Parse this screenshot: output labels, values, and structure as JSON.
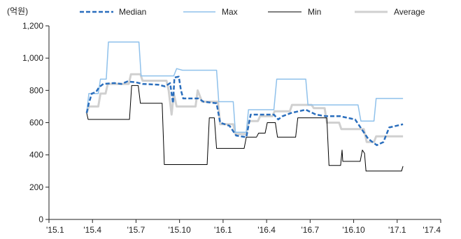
{
  "chart_data": {
    "type": "line",
    "unit_label": "(억원)",
    "y_ticks": [
      "0",
      "200",
      "400",
      "600",
      "800",
      "1,000",
      "1,200"
    ],
    "ylim": [
      0,
      1200
    ],
    "x_ticks": [
      "'15.1",
      "'15.4",
      "'15.7",
      "'15.10",
      "'16.1",
      "'16.4",
      "'16.7",
      "'16.10",
      "'17.1",
      "'17.4"
    ],
    "x_tick_months": [
      0,
      3,
      6,
      9,
      12,
      15,
      18,
      21,
      24,
      27
    ],
    "xlim_months": [
      0,
      27
    ],
    "grid": false,
    "legend_position": "top",
    "series": [
      {
        "name": "Median",
        "color": "#2a6ebd",
        "style": "dashed",
        "points": [
          [
            2.6,
            660
          ],
          [
            2.75,
            720
          ],
          [
            2.95,
            780
          ],
          [
            3.25,
            790
          ],
          [
            3.45,
            820
          ],
          [
            3.75,
            840
          ],
          [
            4.5,
            845
          ],
          [
            5.0,
            840
          ],
          [
            5.4,
            855
          ],
          [
            6.0,
            850
          ],
          [
            6.45,
            840
          ],
          [
            7.55,
            835
          ],
          [
            8.0,
            825
          ],
          [
            8.35,
            845
          ],
          [
            8.55,
            720
          ],
          [
            8.65,
            880
          ],
          [
            8.95,
            885
          ],
          [
            9.1,
            800
          ],
          [
            9.25,
            750
          ],
          [
            10.3,
            750
          ],
          [
            10.65,
            730
          ],
          [
            11.55,
            720
          ],
          [
            11.8,
            600
          ],
          [
            12.45,
            580
          ],
          [
            12.9,
            520
          ],
          [
            13.6,
            510
          ],
          [
            13.9,
            650
          ],
          [
            15.5,
            650
          ],
          [
            15.8,
            620
          ],
          [
            16.1,
            640
          ],
          [
            16.7,
            660
          ],
          [
            17.2,
            670
          ],
          [
            17.7,
            680
          ],
          [
            18.4,
            650
          ],
          [
            19.1,
            640
          ],
          [
            20.1,
            640
          ],
          [
            20.3,
            635
          ],
          [
            21.1,
            620
          ],
          [
            22.0,
            500
          ],
          [
            22.3,
            480
          ],
          [
            22.6,
            460
          ],
          [
            23.05,
            480
          ],
          [
            23.45,
            570
          ],
          [
            24.4,
            590
          ]
        ]
      },
      {
        "name": "Max",
        "color": "#8fc1eb",
        "style": "solid",
        "points": [
          [
            2.6,
            660
          ],
          [
            2.75,
            780
          ],
          [
            3.4,
            780
          ],
          [
            3.55,
            870
          ],
          [
            3.95,
            870
          ],
          [
            4.1,
            1100
          ],
          [
            6.2,
            1100
          ],
          [
            6.35,
            890
          ],
          [
            8.6,
            890
          ],
          [
            8.8,
            935
          ],
          [
            9.2,
            925
          ],
          [
            11.55,
            925
          ],
          [
            11.7,
            730
          ],
          [
            12.7,
            730
          ],
          [
            12.85,
            540
          ],
          [
            13.6,
            540
          ],
          [
            13.75,
            680
          ],
          [
            15.5,
            680
          ],
          [
            15.7,
            870
          ],
          [
            17.7,
            870
          ],
          [
            17.85,
            710
          ],
          [
            21.3,
            710
          ],
          [
            21.5,
            610
          ],
          [
            22.4,
            610
          ],
          [
            22.55,
            750
          ],
          [
            24.4,
            750
          ]
        ]
      },
      {
        "name": "Min",
        "color": "#000000",
        "style": "solid",
        "points": [
          [
            2.6,
            660
          ],
          [
            2.7,
            620
          ],
          [
            5.55,
            620
          ],
          [
            5.7,
            830
          ],
          [
            6.15,
            830
          ],
          [
            6.3,
            720
          ],
          [
            7.8,
            720
          ],
          [
            7.95,
            340
          ],
          [
            10.9,
            340
          ],
          [
            11.05,
            630
          ],
          [
            11.4,
            630
          ],
          [
            11.55,
            440
          ],
          [
            13.45,
            440
          ],
          [
            13.6,
            510
          ],
          [
            14.3,
            510
          ],
          [
            14.45,
            535
          ],
          [
            14.9,
            535
          ],
          [
            15.05,
            600
          ],
          [
            15.6,
            600
          ],
          [
            15.75,
            510
          ],
          [
            17.0,
            510
          ],
          [
            17.15,
            630
          ],
          [
            19.15,
            630
          ],
          [
            19.3,
            335
          ],
          [
            20.1,
            335
          ],
          [
            20.2,
            430
          ],
          [
            20.25,
            360
          ],
          [
            21.45,
            360
          ],
          [
            21.6,
            430
          ],
          [
            21.75,
            410
          ],
          [
            21.85,
            300
          ],
          [
            24.3,
            300
          ],
          [
            24.4,
            330
          ]
        ]
      },
      {
        "name": "Average",
        "color": "#d0d0d0",
        "style": "solid",
        "points": [
          [
            2.6,
            660
          ],
          [
            2.75,
            700
          ],
          [
            3.4,
            700
          ],
          [
            3.55,
            780
          ],
          [
            3.9,
            780
          ],
          [
            4.05,
            840
          ],
          [
            5.5,
            840
          ],
          [
            5.65,
            900
          ],
          [
            6.3,
            900
          ],
          [
            6.45,
            860
          ],
          [
            8.1,
            860
          ],
          [
            8.25,
            800
          ],
          [
            8.45,
            650
          ],
          [
            8.6,
            780
          ],
          [
            8.8,
            700
          ],
          [
            10.1,
            700
          ],
          [
            10.25,
            800
          ],
          [
            10.55,
            730
          ],
          [
            11.65,
            730
          ],
          [
            11.8,
            590
          ],
          [
            12.7,
            590
          ],
          [
            12.85,
            530
          ],
          [
            13.6,
            530
          ],
          [
            13.75,
            610
          ],
          [
            14.4,
            610
          ],
          [
            14.55,
            640
          ],
          [
            15.4,
            640
          ],
          [
            15.55,
            670
          ],
          [
            16.6,
            670
          ],
          [
            16.75,
            710
          ],
          [
            18.1,
            710
          ],
          [
            18.25,
            690
          ],
          [
            19.0,
            690
          ],
          [
            19.15,
            600
          ],
          [
            20.0,
            600
          ],
          [
            20.15,
            560
          ],
          [
            21.7,
            560
          ],
          [
            21.9,
            480
          ],
          [
            22.4,
            480
          ],
          [
            22.55,
            515
          ],
          [
            24.4,
            515
          ]
        ]
      }
    ]
  }
}
